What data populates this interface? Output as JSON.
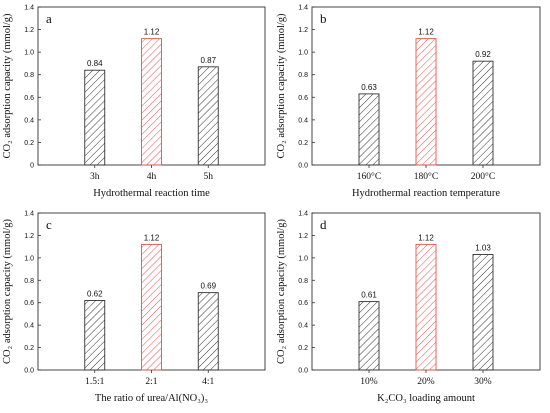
{
  "chart_data": [
    {
      "type": "bar",
      "panel": "a",
      "categories": [
        "3h",
        "4h",
        "5h"
      ],
      "values": [
        0.84,
        1.12,
        0.87
      ],
      "value_labels": [
        "0.84",
        "1.12",
        "0.87"
      ],
      "highlight": [
        false,
        true,
        false
      ],
      "xlabel": "Hydrothermal reaction time",
      "ylabel": "CO₂ adsorption capacity (mmol/g)",
      "ylim": [
        0,
        1.4
      ],
      "yticks": [
        "0",
        "0.2",
        "0.4",
        "0.6",
        "0.8",
        "1.0",
        "1.2",
        "1.4"
      ],
      "grid": false
    },
    {
      "type": "bar",
      "panel": "b",
      "categories": [
        "160°C",
        "180°C",
        "200°C"
      ],
      "values": [
        0.63,
        1.12,
        0.92
      ],
      "value_labels": [
        "0.63",
        "1.12",
        "0.92"
      ],
      "highlight": [
        false,
        true,
        false
      ],
      "xlabel": "Hydrothermal reaction temperature",
      "ylabel": "CO₂ adsorption capacity (mmol/g)",
      "ylim": [
        0,
        1.4
      ],
      "yticks": [
        "0.0",
        "0.2",
        "0.4",
        "0.6",
        "0.8",
        "1.0",
        "1.2",
        "1.4"
      ],
      "grid": false
    },
    {
      "type": "bar",
      "panel": "c",
      "categories": [
        "1.5:1",
        "2:1",
        "4:1"
      ],
      "values": [
        0.62,
        1.12,
        0.69
      ],
      "value_labels": [
        "0.62",
        "1.12",
        "0.69"
      ],
      "highlight": [
        false,
        true,
        false
      ],
      "xlabel": "The ratio of urea/Al(NO₃)₃",
      "ylabel": "CO₂ adsorption capacity (mmol/g)",
      "ylim": [
        0,
        1.4
      ],
      "yticks": [
        "0.0",
        "0.2",
        "0.4",
        "0.6",
        "0.8",
        "1.0",
        "1.2",
        "1.4"
      ],
      "grid": false
    },
    {
      "type": "bar",
      "panel": "d",
      "categories": [
        "10%",
        "20%",
        "30%"
      ],
      "values": [
        0.61,
        1.12,
        1.03
      ],
      "value_labels": [
        "0.61",
        "1.12",
        "1.03"
      ],
      "highlight": [
        false,
        true,
        false
      ],
      "xlabel": "K₂CO₃ loading amount",
      "ylabel": "CO₂ adsorption capacity (mmol/g)",
      "ylim": [
        0,
        1.4
      ],
      "yticks": [
        "0.0",
        "0.2",
        "0.4",
        "0.6",
        "0.8",
        "1.0",
        "1.2",
        "1.4"
      ],
      "grid": false
    }
  ],
  "colors": {
    "bar_stroke": "#333333",
    "highlight_stroke": "#e8534a",
    "axis": "#333333"
  }
}
